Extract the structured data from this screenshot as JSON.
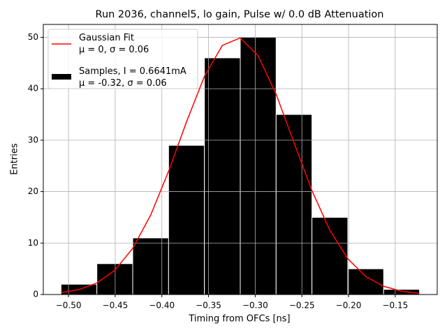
{
  "chart_data": {
    "type": "histogram",
    "title": "Run 2036, channel5, lo gain, Pulse w/ 0.0 dB Attenuation",
    "xlabel": "Timing from OFCs [ns]",
    "ylabel": "Entries",
    "xlim": [
      -0.527,
      -0.105
    ],
    "ylim": [
      0,
      52.5
    ],
    "xticks": [
      {
        "value": -0.5,
        "label": "−0.50"
      },
      {
        "value": -0.45,
        "label": "−0.45"
      },
      {
        "value": -0.4,
        "label": "−0.40"
      },
      {
        "value": -0.35,
        "label": "−0.35"
      },
      {
        "value": -0.3,
        "label": "−0.30"
      },
      {
        "value": -0.25,
        "label": "−0.25"
      },
      {
        "value": -0.2,
        "label": "−0.20"
      },
      {
        "value": -0.15,
        "label": "−0.15"
      }
    ],
    "yticks": [
      0,
      10,
      20,
      30,
      40,
      50
    ],
    "grid": true,
    "legend": "upper left",
    "series": [
      {
        "name": "Gaussian Fit\nμ = 0, σ = 0.06",
        "type": "line",
        "color": "#ff0000",
        "x": [
          -0.508,
          -0.4888,
          -0.4696,
          -0.4504,
          -0.4312,
          -0.412,
          -0.3928,
          -0.3736,
          -0.3544,
          -0.3352,
          -0.316,
          -0.2968,
          -0.2776,
          -0.2584,
          -0.2392,
          -0.22,
          -0.2008,
          -0.1816,
          -0.1624,
          -0.1432,
          -0.124
        ],
        "values": [
          0.37,
          0.96,
          2.24,
          4.71,
          8.98,
          15.43,
          23.95,
          33.55,
          42.42,
          48.42,
          49.89,
          46.4,
          38.95,
          29.51,
          20.19,
          12.47,
          6.95,
          3.5,
          1.59,
          0.65,
          0.24
        ]
      },
      {
        "name": "Samples, I = 0.6641mA\nμ = -0.32, σ = 0.06",
        "type": "bar",
        "color": "#000000",
        "bins": [
          -0.508,
          -0.4696,
          -0.4312,
          -0.3928,
          -0.3544,
          -0.316,
          -0.2776,
          -0.2392,
          -0.2008,
          -0.1624,
          -0.124
        ],
        "values": [
          2,
          6,
          11,
          29,
          46,
          50,
          35,
          15,
          5,
          1
        ]
      }
    ]
  }
}
